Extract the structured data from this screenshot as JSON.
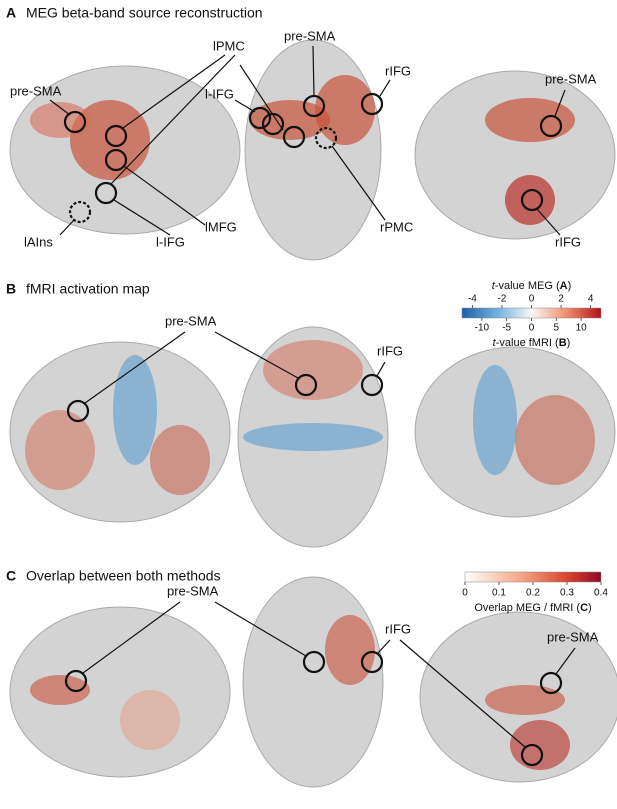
{
  "panels": [
    {
      "letter": "A",
      "title": "MEG beta-band source reconstruction",
      "labels": [
        "pre-SMA",
        "lPMC",
        "l-IFG",
        "pre-SMA",
        "rIFG",
        "lAIns",
        "l-IFG",
        "lMFG",
        "rPMC",
        "pre-SMA",
        "rIFG"
      ]
    },
    {
      "letter": "B",
      "title": "fMRI activation map",
      "labels": [
        "pre-SMA",
        "rIFG"
      ]
    },
    {
      "letter": "C",
      "title": "Overlap between both methods",
      "labels": [
        "pre-SMA",
        "rIFG",
        "pre-SMA"
      ]
    }
  ],
  "colorbar_meg_fmri": {
    "top_title": [
      "t",
      "-value MEG (",
      "A",
      ")"
    ],
    "top_ticks": [
      -4,
      -2,
      0,
      2,
      4
    ],
    "top_lim": [
      -4.7,
      4.7
    ],
    "bottom_title": [
      "t",
      "-value fMRI (",
      "B",
      ")"
    ],
    "bottom_ticks": [
      -10,
      -5,
      0,
      5,
      10
    ],
    "bottom_lim": [
      -14,
      14
    ]
  },
  "colorbar_overlap": {
    "title": [
      "Overlap MEG / fMRI (",
      "C",
      ")"
    ],
    "ticks": [
      0,
      0.1,
      0.2,
      0.3,
      0.4
    ],
    "lim": [
      0,
      0.4
    ]
  }
}
